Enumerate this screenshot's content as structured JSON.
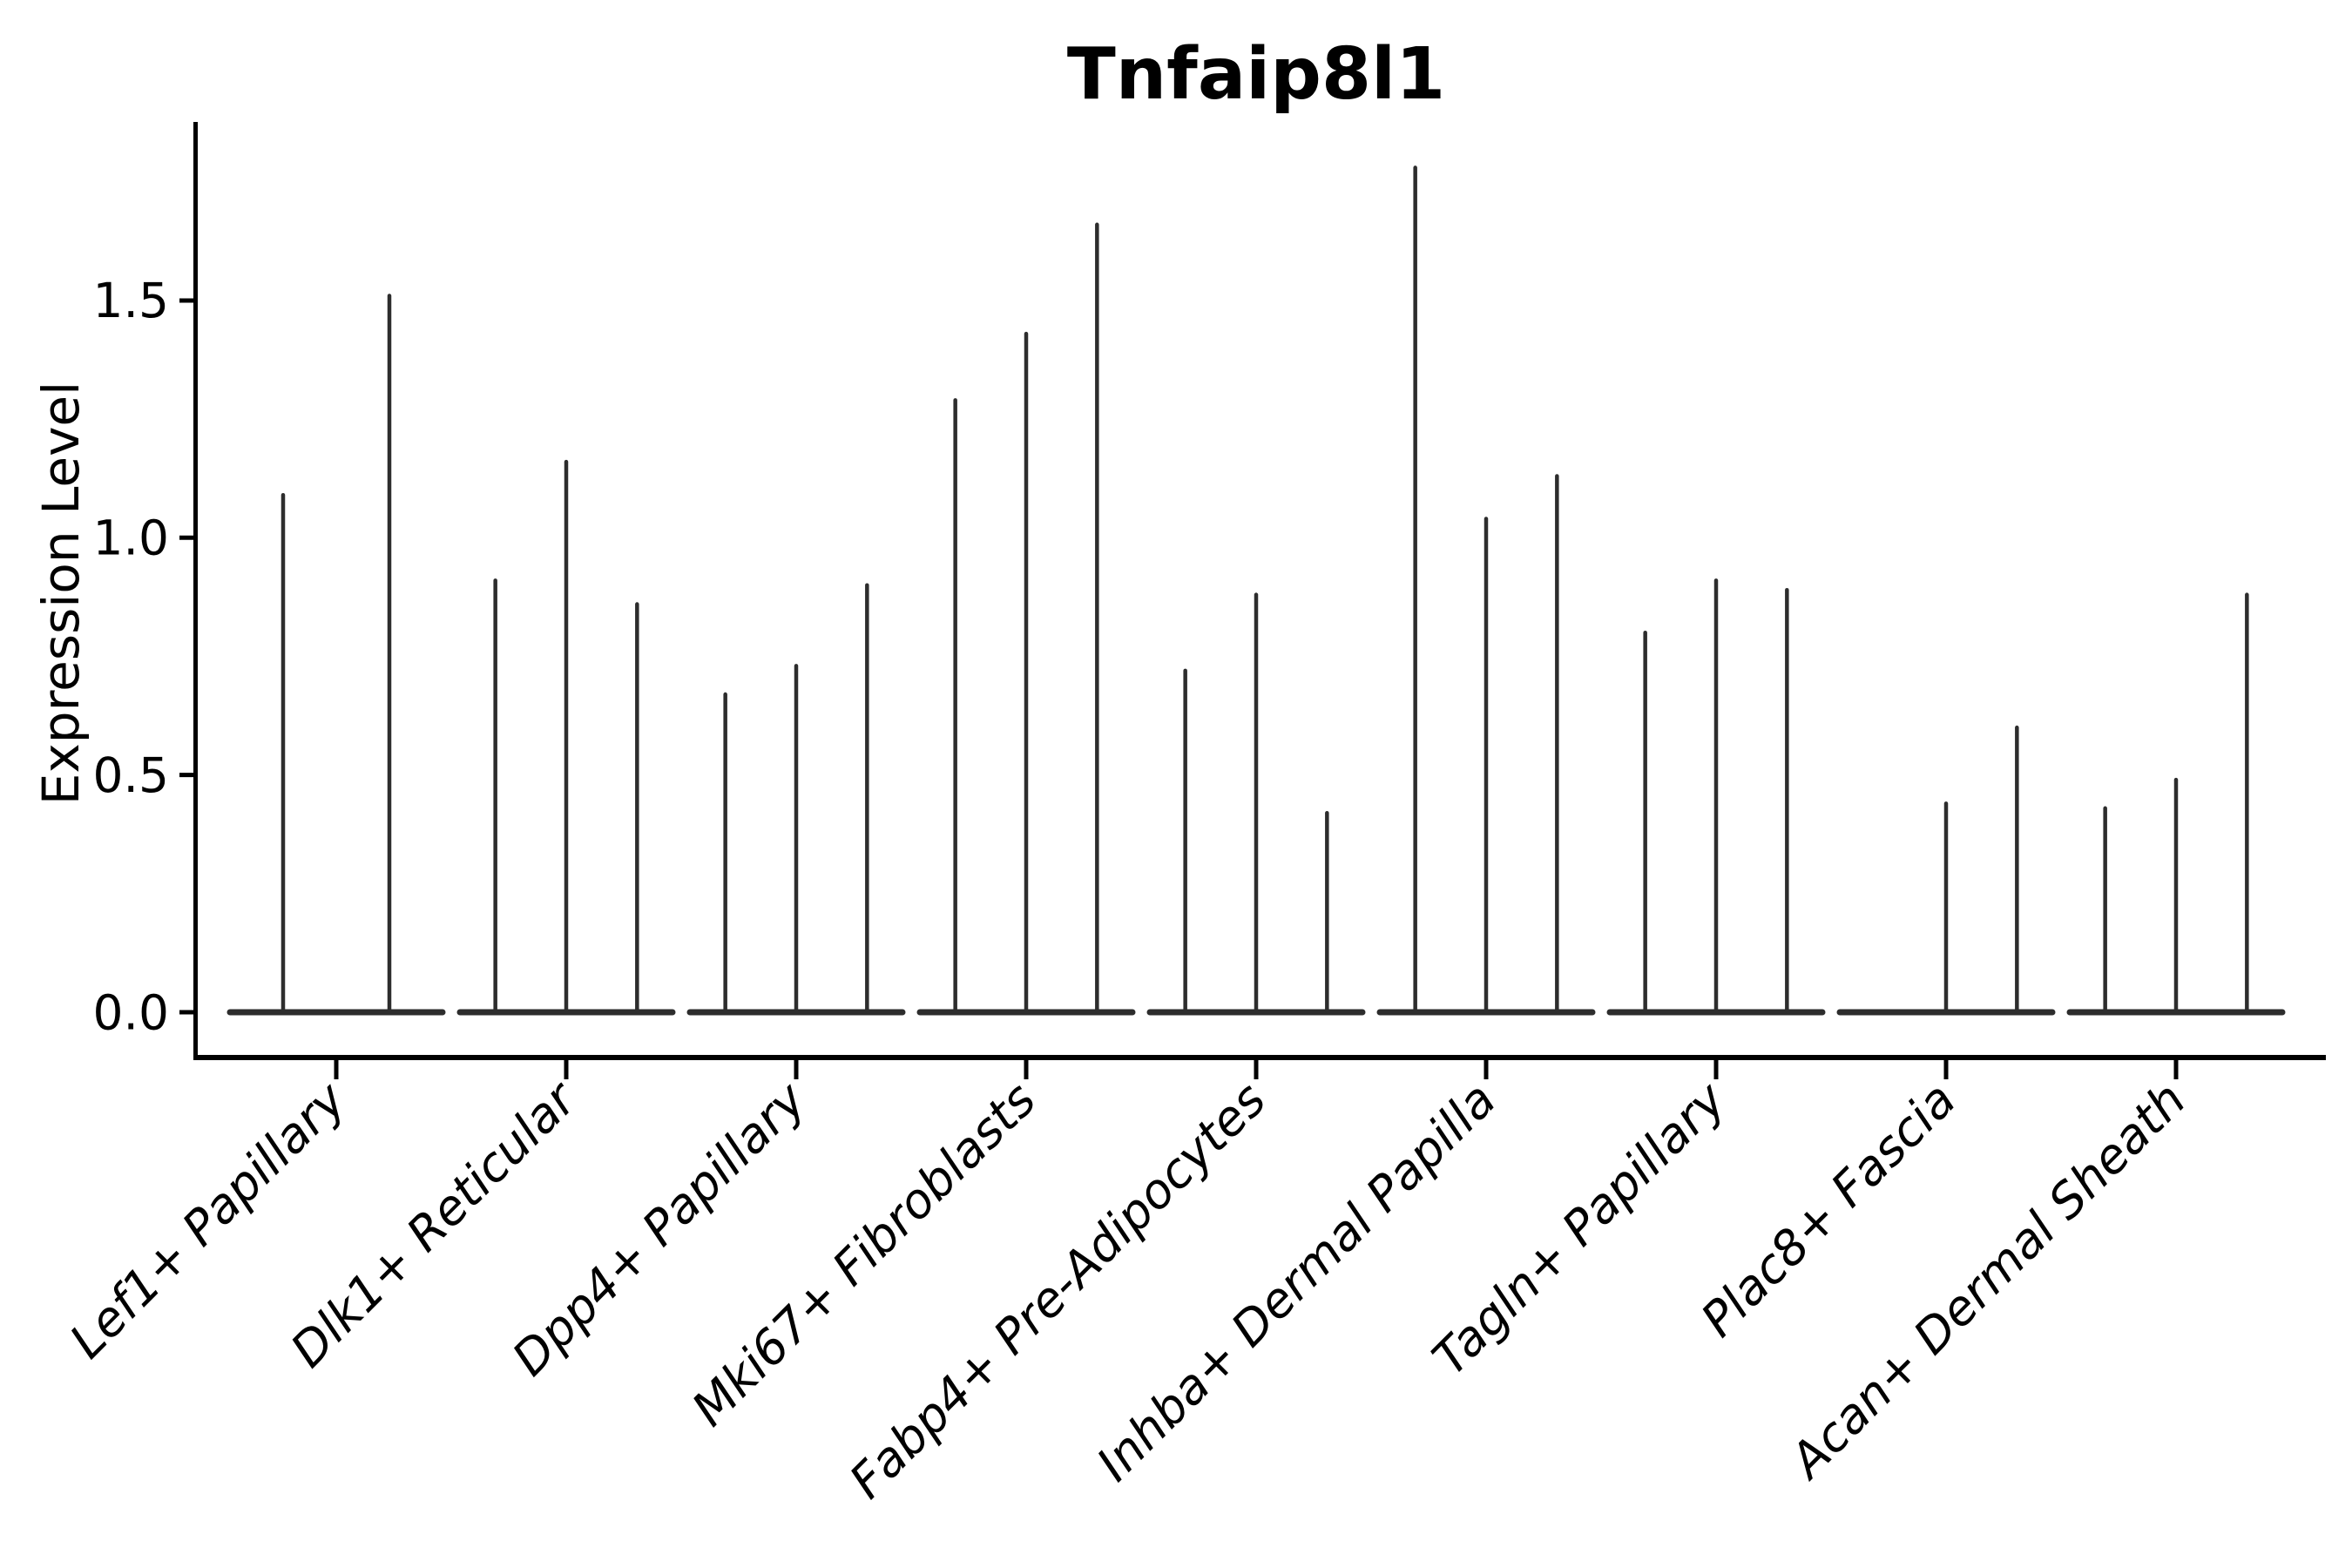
{
  "chart_data": {
    "type": "violin",
    "title": "Tnfaip8l1",
    "xlabel": "",
    "ylabel": "Expression Level",
    "yticks": [
      0.0,
      0.5,
      1.0,
      1.5
    ],
    "ytick_labels": [
      "0.0",
      "0.5",
      "1.0",
      "1.5"
    ],
    "ylim": [
      -0.09,
      1.87
    ],
    "grid": false,
    "legend": "none",
    "categories": [
      "Lef1+ Papillary",
      "Dlk1+ Reticular",
      "Dpp4+ Papillary",
      "Mki67+ Fibroblasts",
      "Fabp4+ Pre-Adipocytes",
      "Inhba+ Dermal Papilla",
      "Tagln+ Papillary",
      "Plac8+ Fascia",
      "Acan+ Dermal Sheath"
    ],
    "groups": [
      {
        "label": "Lef1+ Papillary",
        "violin_max_values": [
          1.09,
          1.51
        ]
      },
      {
        "label": "Dlk1+ Reticular",
        "violin_max_values": [
          0.91,
          1.16,
          0.86
        ]
      },
      {
        "label": "Dpp4+ Papillary",
        "violin_max_values": [
          0.67,
          0.73,
          0.9
        ]
      },
      {
        "label": "Mki67+ Fibroblasts",
        "violin_max_values": [
          1.29,
          1.43,
          1.66
        ]
      },
      {
        "label": "Fabp4+ Pre-Adipocytes",
        "violin_max_values": [
          0.72,
          0.88,
          0.42
        ]
      },
      {
        "label": "Inhba+ Dermal Papilla",
        "violin_max_values": [
          1.78,
          1.04,
          1.13
        ]
      },
      {
        "label": "Tagln+ Papillary",
        "violin_max_values": [
          0.8,
          0.91,
          0.89
        ]
      },
      {
        "label": "Plac8+ Fascia",
        "violin_max_values": [
          0.0,
          0.44,
          0.6
        ]
      },
      {
        "label": "Acan+ Dermal Sheath",
        "violin_max_values": [
          0.43,
          0.49,
          0.88
        ]
      }
    ],
    "style": {
      "violin_color": "#2d2d2d",
      "axis_color": "#000000",
      "text_color": "#000000",
      "background": "#ffffff",
      "x_label_rotation_deg": 45,
      "x_label_style": "italic"
    }
  }
}
